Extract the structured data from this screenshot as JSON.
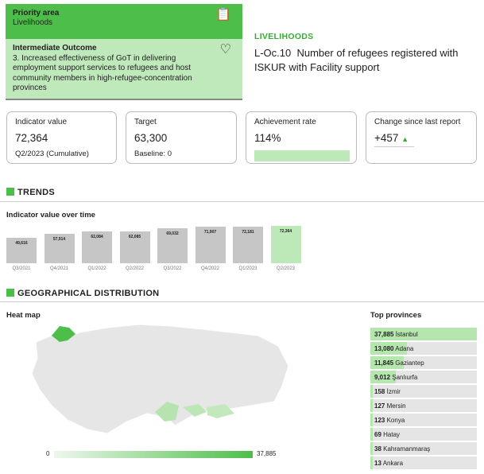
{
  "header": {
    "priority_label": "Priority area",
    "priority_value": "Livelihoods",
    "outcome_label": "Intermediate Outcome",
    "outcome_text": "3. Increased effectiveness of GoT in delivering employment support services to refugees and host community members in high-refugee-concentration provinces",
    "category": "LIVELIHOODS",
    "indicator_code": "L-Oc.10",
    "indicator_title": "Number of refugees registered with ISKUR with Facility support"
  },
  "cards": {
    "indicator_label": "Indicator value",
    "indicator_value": "72,364",
    "indicator_period": "Q2/2023 (Cumulative)",
    "target_label": "Target",
    "target_value": "63,300",
    "baseline": "Baseline: 0",
    "achievement_label": "Achievement rate",
    "achievement_value": "114%",
    "achievement_fraction": 1.0,
    "change_label": "Change since last report",
    "change_value": "+457"
  },
  "trends": {
    "section_title": "TRENDS",
    "chart_title": "Indicator value over time"
  },
  "chart_data": {
    "type": "bar",
    "categories": [
      "Q3/2021",
      "Q4/2021",
      "Q1/2022",
      "Q2/2022",
      "Q3/2022",
      "Q4/2022",
      "Q1/2023",
      "Q2/2023"
    ],
    "values": [
      49616,
      57914,
      62084,
      62085,
      69032,
      71907,
      72181,
      72364
    ],
    "labels": [
      "49,616",
      "57,914",
      "62,084",
      "62,085",
      "69,032",
      "71,907",
      "72,181",
      "72,364"
    ],
    "highlight_color": "#bde9b8",
    "bar_color": "#c6c6c6"
  },
  "geo": {
    "section_title": "GEOGRAPHICAL DISTRIBUTION",
    "heatmap_label": "Heat map",
    "legend_min": "0",
    "legend_max": "37,885",
    "top_label": "Top provinces",
    "provinces": [
      {
        "value": 37885,
        "label": "37,885",
        "name": "İstanbul"
      },
      {
        "value": 13080,
        "label": "13,080",
        "name": "Adana"
      },
      {
        "value": 11845,
        "label": "11,845",
        "name": "Gaziantep"
      },
      {
        "value": 9012,
        "label": "9,012",
        "name": "Şanlıurfa"
      },
      {
        "value": 158,
        "label": "158",
        "name": "İzmir"
      },
      {
        "value": 127,
        "label": "127",
        "name": "Mersin"
      },
      {
        "value": 123,
        "label": "123",
        "name": "Konya"
      },
      {
        "value": 69,
        "label": "69",
        "name": "Hatay"
      },
      {
        "value": 38,
        "label": "38",
        "name": "Kahramanmaraş"
      },
      {
        "value": 13,
        "label": "13",
        "name": "Ankara"
      }
    ]
  },
  "colors": {
    "primary": "#4dbe4a",
    "light": "#bfe8bb"
  }
}
